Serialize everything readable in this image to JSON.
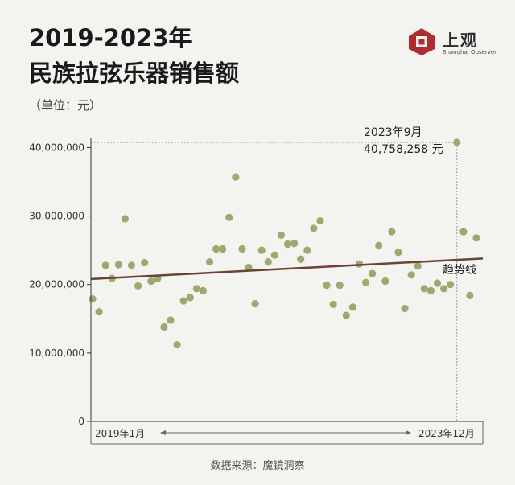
{
  "header": {
    "title_line1": "2019-2023年",
    "title_line2": "民族拉弦乐器销售额",
    "unit": "（单位：元）"
  },
  "logo": {
    "icon": "shanghai-observer-logo-icon",
    "name": "上观",
    "subtitle": "Shanghai Observer"
  },
  "source": "数据来源：魔镜洞察",
  "colors": {
    "dots": "#9aab6e",
    "trend": "#6b4237",
    "axis": "#333333",
    "guide": "#999999",
    "background": "#f3f3f0"
  },
  "chart_data": {
    "type": "scatter",
    "title": "2019-2023年 民族拉弦乐器销售额",
    "ylabel": "（单位：元）",
    "x_start_label": "2019年1月",
    "x_end_label": "2023年12月",
    "x": [
      "2019-01",
      "2019-02",
      "2019-03",
      "2019-04",
      "2019-05",
      "2019-06",
      "2019-07",
      "2019-08",
      "2019-09",
      "2019-10",
      "2019-11",
      "2019-12",
      "2020-01",
      "2020-02",
      "2020-03",
      "2020-04",
      "2020-05",
      "2020-06",
      "2020-07",
      "2020-08",
      "2020-09",
      "2020-10",
      "2020-11",
      "2020-12",
      "2021-01",
      "2021-02",
      "2021-03",
      "2021-04",
      "2021-05",
      "2021-06",
      "2021-07",
      "2021-08",
      "2021-09",
      "2021-10",
      "2021-11",
      "2021-12",
      "2022-01",
      "2022-02",
      "2022-03",
      "2022-04",
      "2022-05",
      "2022-06",
      "2022-07",
      "2022-08",
      "2022-09",
      "2022-10",
      "2022-11",
      "2022-12",
      "2023-01",
      "2023-02",
      "2023-03",
      "2023-04",
      "2023-05",
      "2023-06",
      "2023-07",
      "2023-08",
      "2023-09",
      "2023-10",
      "2023-11",
      "2023-12"
    ],
    "values": [
      17900000,
      16000000,
      22800000,
      20900000,
      22900000,
      29600000,
      22800000,
      19800000,
      23200000,
      20500000,
      20900000,
      13800000,
      14800000,
      11200000,
      17600000,
      18100000,
      19400000,
      19100000,
      23300000,
      25200000,
      25200000,
      29800000,
      35700000,
      25200000,
      22500000,
      17200000,
      25000000,
      23300000,
      24300000,
      27200000,
      25900000,
      26000000,
      23700000,
      25000000,
      28200000,
      29300000,
      19900000,
      17100000,
      19900000,
      15500000,
      16700000,
      23000000,
      20300000,
      21600000,
      25700000,
      20500000,
      27700000,
      24700000,
      16500000,
      21400000,
      22700000,
      19400000,
      19100000,
      20200000,
      19400000,
      20000000,
      40758258,
      27700000,
      18400000,
      26800000
    ],
    "yticks": [
      0,
      10000000,
      20000000,
      30000000,
      40000000
    ],
    "ytick_labels": [
      "0",
      "10,000,000",
      "20,000,000",
      "30,000,000",
      "40,000,000"
    ],
    "ylim": [
      0,
      40758258
    ],
    "trend": {
      "label": "趋势线",
      "start": 20800000,
      "end": 23800000
    },
    "highlight": {
      "x": "2023-09",
      "value": 40758258,
      "date_label": "2023年9月",
      "value_label": "40,758,258 元"
    },
    "grid": false
  }
}
